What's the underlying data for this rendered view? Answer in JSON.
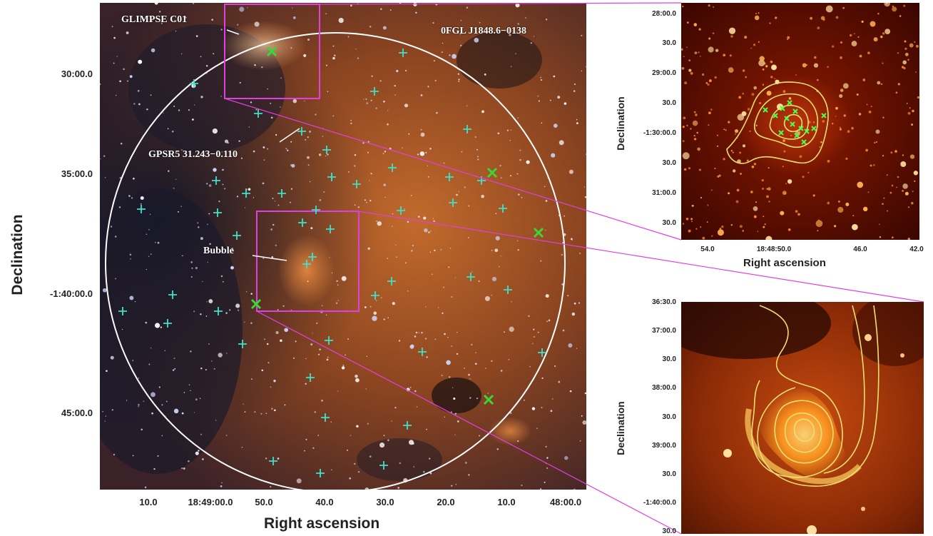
{
  "main_panel": {
    "annotations": {
      "glimpse": "GLIMPSE C01",
      "fermi": "0FGL J1848.6−0138",
      "gpsr": "GPSR5 31.243−0.110",
      "bubble": "Bubble"
    },
    "y_ticks": [
      "30:00.0",
      "35:00.0",
      "-1:40:00.0",
      "45:00.0"
    ],
    "x_ticks": [
      "10.0",
      "18:49:00.0",
      "50.0",
      "40.0",
      "30.0",
      "20.0",
      "10.0",
      "48:00.0"
    ],
    "x_label": "Right ascension",
    "y_label": "Declination"
  },
  "inset_top": {
    "y_ticks": [
      "28:00.0",
      "30.0",
      "29:00.0",
      "30.0",
      "-1:30:00.0",
      "30.0",
      "31:00.0",
      "30.0"
    ],
    "x_ticks": [
      "54.0",
      "18:48:50.0",
      "46.0",
      "42.0"
    ],
    "x_label": "Right ascension",
    "y_label": "Declination"
  },
  "inset_bottom": {
    "y_ticks": [
      "36:30.0",
      "37:00.0",
      "30.0",
      "38:00.0",
      "30.0",
      "39:00.0",
      "30.0",
      "-1:40:00.0",
      "30.0"
    ],
    "y_label": "Declination"
  },
  "colors": {
    "sky_dark": "#1a1520",
    "nebula": "#b8642a",
    "cross": "#3fe0c8",
    "x_marker": "#3ad63a",
    "box": "#e040e0",
    "contour": "#f0e070",
    "circle": "#ffffff"
  }
}
